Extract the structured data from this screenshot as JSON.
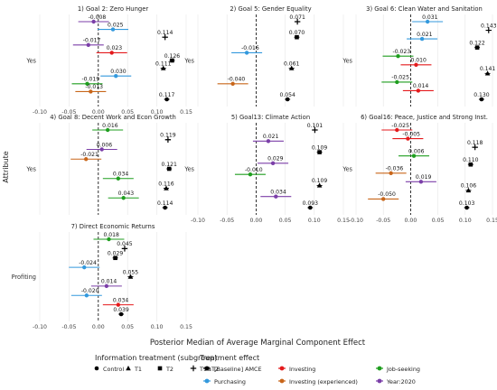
{
  "labels": {
    "y_axis_title": "Attribute",
    "x_axis_title": "Posterior Median of Average Marginal Component Effect"
  },
  "legend": {
    "info_title": "Information treatment (subgroup)",
    "info_items": [
      {
        "label": "Control",
        "shape": "dot"
      },
      {
        "label": "T1",
        "shape": "triangle"
      },
      {
        "label": "T2",
        "shape": "square"
      },
      {
        "label": "T1&T2",
        "shape": "plus"
      }
    ],
    "effect_title": "Treatment effect",
    "effect_items": [
      {
        "label": "[Baseline] AMCE",
        "color": "#000000"
      },
      {
        "label": "Investing",
        "color": "#e41a1c"
      },
      {
        "label": "Job-seeking",
        "color": "#1f9e1f"
      },
      {
        "label": "Purchasing",
        "color": "#3399dd"
      },
      {
        "label": "Investing (experienced)",
        "color": "#c8661a"
      },
      {
        "label": "Year:2020",
        "color": "#7b3fa8"
      }
    ]
  },
  "colors": {
    "Baseline": "#000000",
    "Investing": "#e41a1c",
    "Job-seeking": "#1f9e1f",
    "Purchasing": "#3399dd",
    "Investing (experienced)": "#c8661a",
    "Year:2020": "#7b3fa8"
  },
  "chart_data": [
    {
      "type": "scatter",
      "title": "1) Goal 2: Zero Hunger",
      "ytick": "Yes",
      "xlim": [
        -0.1,
        0.15
      ],
      "xticks": [
        "-0.10",
        "-0.05",
        "0.00",
        "0.05",
        "0.10",
        "0.15"
      ],
      "points": [
        {
          "series": "Year:2020",
          "value": -0.008,
          "label": "-0.008"
        },
        {
          "series": "Purchasing",
          "value": 0.025,
          "label": "0.025"
        },
        {
          "series": "Baseline",
          "value": 0.114,
          "label": "0.114",
          "subgroup": "T1&T2"
        },
        {
          "series": "Year:2020",
          "value": -0.017,
          "label": "-0.017"
        },
        {
          "series": "Investing",
          "value": 0.023,
          "label": "0.023"
        },
        {
          "series": "Baseline",
          "value": 0.126,
          "label": "0.126",
          "subgroup": "T2"
        },
        {
          "series": "Baseline",
          "value": 0.111,
          "label": "0.111",
          "subgroup": "T1"
        },
        {
          "series": "Purchasing",
          "value": 0.03,
          "label": "0.030"
        },
        {
          "series": "Job-seeking",
          "value": -0.019,
          "label": "-0.019"
        },
        {
          "series": "Investing (experienced)",
          "value": -0.013,
          "label": "-0.013"
        },
        {
          "series": "Baseline",
          "value": 0.117,
          "label": "0.117",
          "subgroup": "Control"
        }
      ]
    },
    {
      "type": "scatter",
      "title": "2) Goal 5: Gender Equality",
      "ytick": "Yes",
      "xlim": [
        -0.1,
        0.15
      ],
      "xticks": [],
      "points": [
        {
          "series": "Baseline",
          "value": 0.071,
          "label": "0.071",
          "subgroup": "T1&T2"
        },
        {
          "series": "Baseline",
          "value": 0.07,
          "label": "0.070",
          "subgroup": "T2"
        },
        {
          "series": "Purchasing",
          "value": -0.016,
          "label": "-0.016"
        },
        {
          "series": "Baseline",
          "value": 0.061,
          "label": "0.061",
          "subgroup": "T1"
        },
        {
          "series": "Investing (experienced)",
          "value": -0.04,
          "label": "-0.040"
        },
        {
          "series": "Baseline",
          "value": 0.054,
          "label": "0.054",
          "subgroup": "Control"
        }
      ]
    },
    {
      "type": "scatter",
      "title": "3) Goal 6: Clean Water and Sanitation",
      "ytick": "Yes",
      "xlim": [
        -0.1,
        0.15
      ],
      "xticks": [],
      "points": [
        {
          "series": "Purchasing",
          "value": 0.031,
          "label": "0.031"
        },
        {
          "series": "Baseline",
          "value": 0.143,
          "label": "0.143",
          "subgroup": "T1&T2"
        },
        {
          "series": "Purchasing",
          "value": 0.021,
          "label": "0.021"
        },
        {
          "series": "Baseline",
          "value": 0.122,
          "label": "0.122",
          "subgroup": "T2"
        },
        {
          "series": "Job-seeking",
          "value": -0.023,
          "label": "-0.023"
        },
        {
          "series": "Investing",
          "value": 0.01,
          "label": "0.010"
        },
        {
          "series": "Baseline",
          "value": 0.141,
          "label": "0.141",
          "subgroup": "T1"
        },
        {
          "series": "Job-seeking",
          "value": -0.025,
          "label": "-0.025"
        },
        {
          "series": "Investing",
          "value": 0.014,
          "label": "0.014"
        },
        {
          "series": "Baseline",
          "value": 0.13,
          "label": "0.130",
          "subgroup": "Control"
        }
      ]
    },
    {
      "type": "scatter",
      "title": "4) Goal 8: Decent Work and Econ Growth",
      "ytick": "Yes",
      "xlim": [
        -0.1,
        0.15
      ],
      "xticks": [],
      "points": [
        {
          "series": "Job-seeking",
          "value": 0.016,
          "label": "0.016"
        },
        {
          "series": "Baseline",
          "value": 0.119,
          "label": "0.119",
          "subgroup": "T1&T2"
        },
        {
          "series": "Year:2020",
          "value": 0.006,
          "label": "0.006"
        },
        {
          "series": "Investing (experienced)",
          "value": -0.021,
          "label": "-0.021"
        },
        {
          "series": "Baseline",
          "value": 0.121,
          "label": "0.121",
          "subgroup": "T2"
        },
        {
          "series": "Job-seeking",
          "value": 0.034,
          "label": "0.034"
        },
        {
          "series": "Baseline",
          "value": 0.116,
          "label": "0.116",
          "subgroup": "T1"
        },
        {
          "series": "Job-seeking",
          "value": 0.043,
          "label": "0.043"
        },
        {
          "series": "Baseline",
          "value": 0.114,
          "label": "0.114",
          "subgroup": "Control"
        }
      ]
    },
    {
      "type": "scatter",
      "title": "5) Goal13: Climate Action",
      "ytick": "Yes",
      "xlim": [
        -0.1,
        0.15
      ],
      "xticks": [
        "-0.10",
        "-0.05",
        "0.00",
        "0.05",
        "0.10",
        "0.15"
      ],
      "points": [
        {
          "series": "Baseline",
          "value": 0.101,
          "label": "0.101",
          "subgroup": "T1&T2"
        },
        {
          "series": "Year:2020",
          "value": 0.021,
          "label": "0.021"
        },
        {
          "series": "Baseline",
          "value": 0.109,
          "label": "0.109",
          "subgroup": "T2"
        },
        {
          "series": "Year:2020",
          "value": 0.029,
          "label": "0.029"
        },
        {
          "series": "Job-seeking",
          "value": -0.01,
          "label": "-0.010"
        },
        {
          "series": "Baseline",
          "value": 0.109,
          "label": "0.109",
          "subgroup": "T1"
        },
        {
          "series": "Year:2020",
          "value": 0.034,
          "label": "0.034"
        },
        {
          "series": "Baseline",
          "value": 0.093,
          "label": "0.093",
          "subgroup": "Control"
        }
      ]
    },
    {
      "type": "scatter",
      "title": "6) Goal16: Peace, Justice and Strong Inst.",
      "ytick": "Yes",
      "xlim": [
        -0.1,
        0.15
      ],
      "xticks": [
        "-0.10",
        "-0.05",
        "0.00",
        "0.05",
        "0.10",
        "0.15"
      ],
      "points": [
        {
          "series": "Investing",
          "value": -0.025,
          "label": "-0.025"
        },
        {
          "series": "Investing",
          "value": -0.005,
          "label": "-0.005"
        },
        {
          "series": "Baseline",
          "value": 0.118,
          "label": "0.118",
          "subgroup": "T1&T2"
        },
        {
          "series": "Job-seeking",
          "value": 0.006,
          "label": "0.006"
        },
        {
          "series": "Baseline",
          "value": 0.11,
          "label": "0.110",
          "subgroup": "T2"
        },
        {
          "series": "Investing (experienced)",
          "value": -0.036,
          "label": "-0.036"
        },
        {
          "series": "Year:2020",
          "value": 0.019,
          "label": "0.019"
        },
        {
          "series": "Baseline",
          "value": 0.106,
          "label": "0.106",
          "subgroup": "T1"
        },
        {
          "series": "Investing (experienced)",
          "value": -0.05,
          "label": "-0.050"
        },
        {
          "series": "Baseline",
          "value": 0.103,
          "label": "0.103",
          "subgroup": "Control"
        }
      ]
    },
    {
      "type": "scatter",
      "title": "7) Direct Economic Returns",
      "ytick": "Profiting",
      "xlim": [
        -0.1,
        0.15
      ],
      "xticks": [
        "-0.10",
        "-0.05",
        "0.00",
        "0.05",
        "0.10",
        "0.15"
      ],
      "points": [
        {
          "series": "Job-seeking",
          "value": 0.018,
          "label": "0.018"
        },
        {
          "series": "Baseline",
          "value": 0.045,
          "label": "0.045",
          "subgroup": "T1&T2"
        },
        {
          "series": "Baseline",
          "value": 0.029,
          "label": "0.029",
          "subgroup": "T2"
        },
        {
          "series": "Purchasing",
          "value": -0.024,
          "label": "-0.024"
        },
        {
          "series": "Baseline",
          "value": 0.055,
          "label": "0.055",
          "subgroup": "T1"
        },
        {
          "series": "Year:2020",
          "value": 0.014,
          "label": "0.014"
        },
        {
          "series": "Purchasing",
          "value": -0.02,
          "label": "-0.020"
        },
        {
          "series": "Investing",
          "value": 0.034,
          "label": "0.034"
        },
        {
          "series": "Baseline",
          "value": 0.039,
          "label": "0.039",
          "subgroup": "Control"
        }
      ]
    }
  ]
}
